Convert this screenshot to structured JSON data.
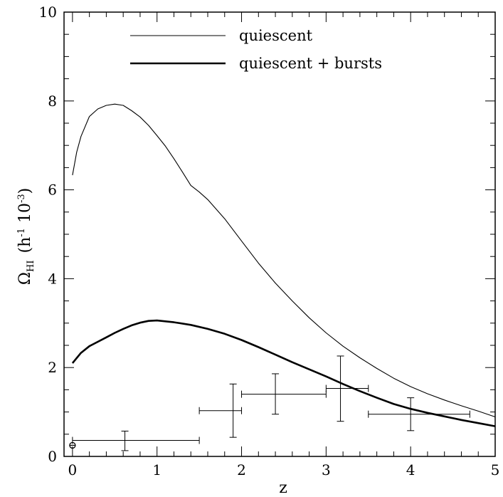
{
  "chart_data": {
    "type": "line",
    "title": "",
    "xlabel": "z",
    "ylabel": "Ω",
    "ylabel_sub": "HI",
    "ylabel_units": "(h",
    "ylabel_exp1": "-1",
    "ylabel_mid": " 10",
    "ylabel_exp2": "-3",
    "ylabel_close": ")",
    "xlim": [
      -0.1,
      5.0
    ],
    "ylim": [
      0,
      10
    ],
    "xticks": [
      0,
      1,
      2,
      3,
      4,
      5
    ],
    "yticks": [
      0,
      2,
      4,
      6,
      8,
      10
    ],
    "grid": false,
    "legend_position": "top",
    "series": [
      {
        "name": "quiescent",
        "style": "thin",
        "x": [
          0.0,
          0.05,
          0.1,
          0.2,
          0.3,
          0.4,
          0.5,
          0.6,
          0.7,
          0.8,
          0.9,
          1.0,
          1.1,
          1.2,
          1.3,
          1.4,
          1.5,
          1.6,
          1.8,
          2.0,
          2.2,
          2.4,
          2.6,
          2.8,
          3.0,
          3.2,
          3.4,
          3.6,
          3.8,
          4.0,
          4.2,
          4.4,
          4.6,
          4.8,
          5.0
        ],
        "y": [
          6.33,
          6.85,
          7.2,
          7.65,
          7.82,
          7.9,
          7.93,
          7.9,
          7.78,
          7.64,
          7.45,
          7.22,
          6.98,
          6.7,
          6.4,
          6.1,
          5.95,
          5.78,
          5.35,
          4.85,
          4.35,
          3.9,
          3.5,
          3.12,
          2.78,
          2.48,
          2.22,
          1.98,
          1.76,
          1.57,
          1.41,
          1.27,
          1.14,
          1.02,
          0.89
        ]
      },
      {
        "name": "quiescent + bursts",
        "style": "thick",
        "x": [
          0.0,
          0.1,
          0.2,
          0.3,
          0.4,
          0.5,
          0.6,
          0.7,
          0.8,
          0.9,
          1.0,
          1.2,
          1.4,
          1.6,
          1.8,
          2.0,
          2.2,
          2.4,
          2.6,
          2.8,
          3.0,
          3.2,
          3.4,
          3.6,
          3.8,
          4.0,
          4.2,
          4.4,
          4.6,
          4.8,
          5.0
        ],
        "y": [
          2.1,
          2.33,
          2.48,
          2.58,
          2.68,
          2.78,
          2.87,
          2.95,
          3.01,
          3.05,
          3.06,
          3.02,
          2.96,
          2.87,
          2.76,
          2.62,
          2.46,
          2.29,
          2.12,
          1.96,
          1.8,
          1.63,
          1.47,
          1.32,
          1.18,
          1.07,
          0.98,
          0.9,
          0.82,
          0.75,
          0.68
        ]
      }
    ],
    "observations": [
      {
        "x": 0.62,
        "y": 0.36,
        "xerr": [
          0.0,
          1.5
        ],
        "yerr": [
          0.13,
          0.57
        ]
      },
      {
        "x": 1.9,
        "y": 1.03,
        "xerr": [
          1.5,
          2.0
        ],
        "yerr": [
          0.43,
          1.63
        ]
      },
      {
        "x": 2.4,
        "y": 1.4,
        "xerr": [
          2.0,
          3.0
        ],
        "yerr": [
          0.95,
          1.86
        ]
      },
      {
        "x": 3.17,
        "y": 1.53,
        "xerr": [
          3.0,
          3.5
        ],
        "yerr": [
          0.79,
          2.26
        ]
      },
      {
        "x": 4.0,
        "y": 0.95,
        "xerr": [
          3.5,
          4.7
        ],
        "yerr": [
          0.58,
          1.32
        ]
      }
    ],
    "local_point": {
      "x": 0.0,
      "y": 0.25
    }
  }
}
